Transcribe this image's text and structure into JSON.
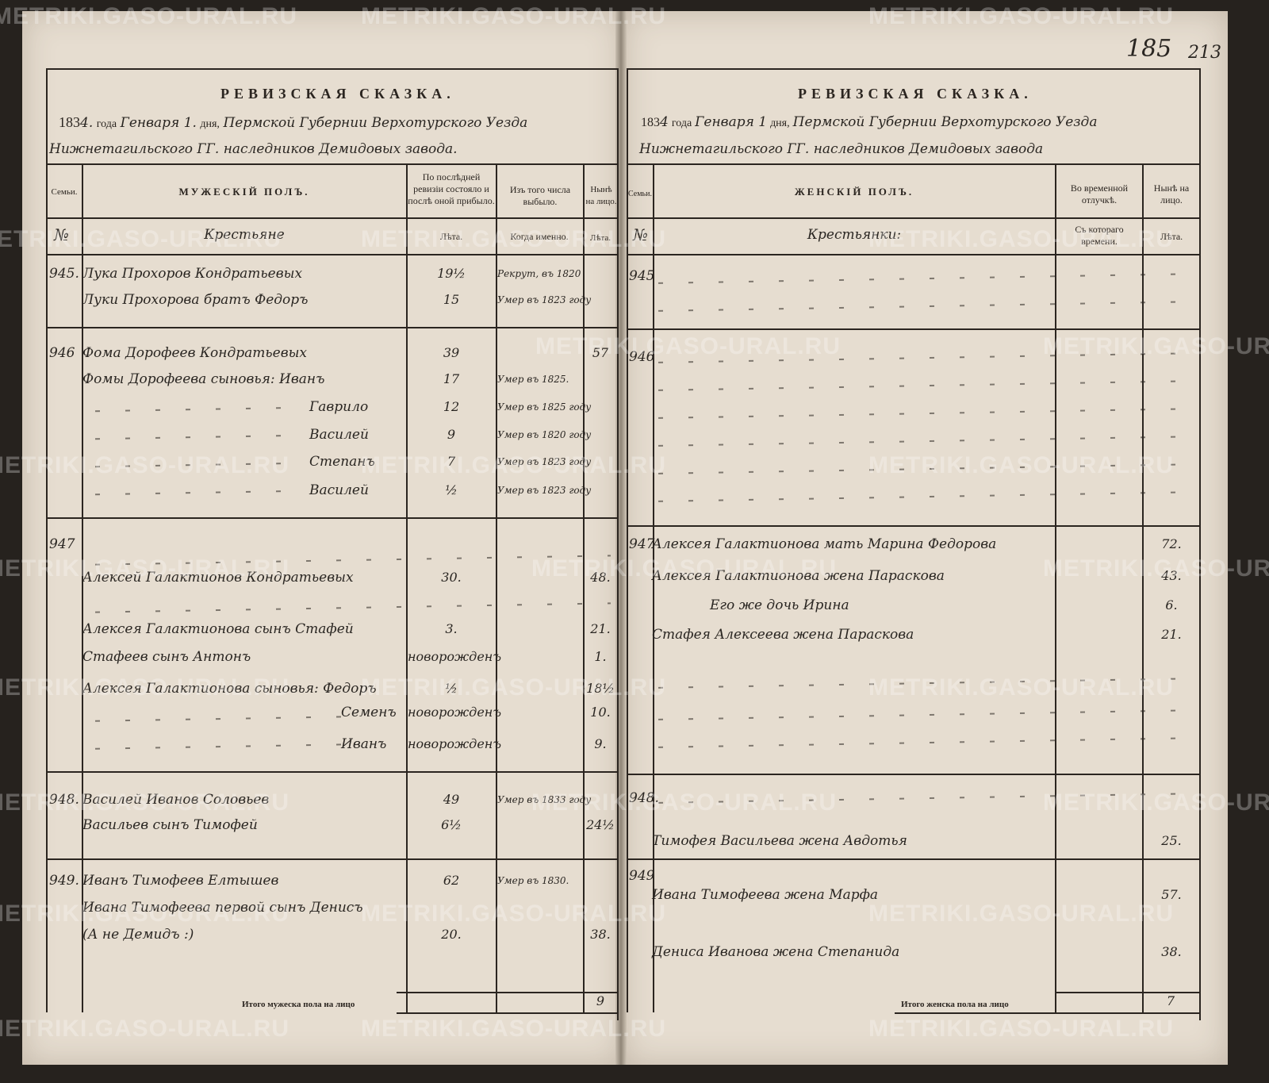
{
  "watermark": "METRIKI.GASO-URAL.RU",
  "page_numbers": {
    "archive": "185",
    "folio": "213"
  },
  "left": {
    "title": "РЕВИЗСКАЯ СКАЗКА.",
    "date_line": {
      "year_printed": "183",
      "year_hand": "4.",
      "year_word": "года",
      "month": "Генваря 1.",
      "day_word": "дня,",
      "place": "Пермской Губернии Верхотурского Уезда"
    },
    "place_line": "Нижнетагильского ГГ. наследников Демидовых завода.",
    "headers": {
      "family": "Семьи.",
      "sex": "МУЖЕСКІЙ ПОЛЪ.",
      "last_revision": "По послѣдней ревизіи состояло и послѣ оной прибыло.",
      "departed": "Изъ того числа выбыло.",
      "now": "Нынѣ на лицо.",
      "number": "№",
      "estate": "Крестьяне",
      "years": "Лѣта.",
      "when": "Когда именно.",
      "years_now": "Лѣта."
    },
    "total_label": "Итого мужеска пола на лицо",
    "total_value": "9"
  },
  "right": {
    "title": "РЕВИЗСКАЯ СКАЗКА.",
    "date_line": {
      "year_printed": "183",
      "year_hand": "4",
      "year_word": "года",
      "month": "Генваря 1",
      "day_word": "дня,",
      "place": "Пермской Губернии Верхотурского Уезда"
    },
    "place_line": "Нижнетагильского ГГ. наследников Демидовых завода",
    "headers": {
      "family": "Семьи.",
      "sex": "ЖЕНСКІЙ ПОЛЪ.",
      "absence": "Во временной отлучкѣ.",
      "now": "Нынѣ на лицо.",
      "number": "№",
      "estate": "Крестьянки:",
      "since": "Съ котораго времени.",
      "years_now": "Лѣта."
    },
    "total_label": "Итого женска пола на лицо",
    "total_value": "7"
  },
  "families": [
    {
      "number": "945.",
      "right_number": "945",
      "male": [
        {
          "name": "Лука Прохоров Кондратьевых",
          "age": "19½",
          "departed": "Рекрут, въ 1820",
          "now": ""
        },
        {
          "name": "Луки Прохорова братъ Федоръ",
          "age": "15",
          "departed": "Умер въ 1823 году",
          "now": ""
        }
      ],
      "female": []
    },
    {
      "number": "946",
      "right_number": "946",
      "male": [
        {
          "name": "Фома Дорофеев Кондратьевых",
          "age": "39",
          "departed": "",
          "now": "57"
        },
        {
          "name": "Фомы Дорофеева сыновья: Иванъ",
          "age": "17",
          "departed": "Умер въ 1825.",
          "now": ""
        },
        {
          "name": "Гаврило",
          "age": "12",
          "departed": "Умер въ 1825 году",
          "now": ""
        },
        {
          "name": "Василей",
          "age": "9",
          "departed": "Умер въ 1820 году",
          "now": ""
        },
        {
          "name": "Степанъ",
          "age": "7",
          "departed": "Умер въ 1823 году",
          "now": ""
        },
        {
          "name": "Василей",
          "age": "½",
          "departed": "Умер въ 1823 году",
          "now": ""
        }
      ],
      "female": []
    },
    {
      "number": "947",
      "right_number": "947",
      "male": [
        {
          "name": "Алексей Галактионов Кондратьевых",
          "age": "30.",
          "departed": "",
          "now": "48."
        },
        {
          "name": "Алексея Галактионова сынъ Стафей",
          "age": "3.",
          "departed": "",
          "now": "21."
        },
        {
          "name": "Стафеев сынъ Антонъ",
          "age": "новорожденъ",
          "departed": "",
          "now": "1."
        },
        {
          "name": "Алексея Галактионова сыновья: Федоръ",
          "age": "½",
          "departed": "",
          "now": "18½"
        },
        {
          "name": "Семенъ",
          "age": "новорожденъ",
          "departed": "",
          "now": "10."
        },
        {
          "name": "Иванъ",
          "age": "новорожденъ",
          "departed": "",
          "now": "9."
        }
      ],
      "female": [
        {
          "name": "Алексея Галактионова мать Марина Федорова",
          "absence": "",
          "now": "72."
        },
        {
          "name": "Алексея Галактионова жена Параскова",
          "absence": "",
          "now": "43."
        },
        {
          "name": "Его же дочь Ирина",
          "absence": "",
          "now": "6."
        },
        {
          "name": "Стафея Алексеева жена Параскова",
          "absence": "",
          "now": "21."
        }
      ]
    },
    {
      "number": "948.",
      "right_number": "948.",
      "male": [
        {
          "name": "Василей Иванов Соловьев",
          "age": "49",
          "departed": "Умер въ 1833 году",
          "now": ""
        },
        {
          "name": "Васильев сынъ Тимофей",
          "age": "6½",
          "departed": "",
          "now": "24½"
        }
      ],
      "female": [
        {
          "name": "Тимофея Васильева жена Авдотья",
          "absence": "",
          "now": "25."
        }
      ]
    },
    {
      "number": "949.",
      "right_number": "949",
      "male": [
        {
          "name": "Иванъ Тимофеев Елтышев",
          "age": "62",
          "departed": "Умер въ 1830.",
          "now": ""
        },
        {
          "name": "Ивана Тимофеева первой сынъ Денисъ",
          "age": "",
          "departed": "",
          "now": ""
        },
        {
          "name": "(А не Демидъ :)",
          "age": "20.",
          "departed": "",
          "now": "38."
        }
      ],
      "female": [
        {
          "name": "Ивана Тимофеева жена Марфа",
          "absence": "",
          "now": "57."
        },
        {
          "name": "Дениса Иванова жена Степанида",
          "absence": "",
          "now": "38."
        }
      ]
    }
  ]
}
